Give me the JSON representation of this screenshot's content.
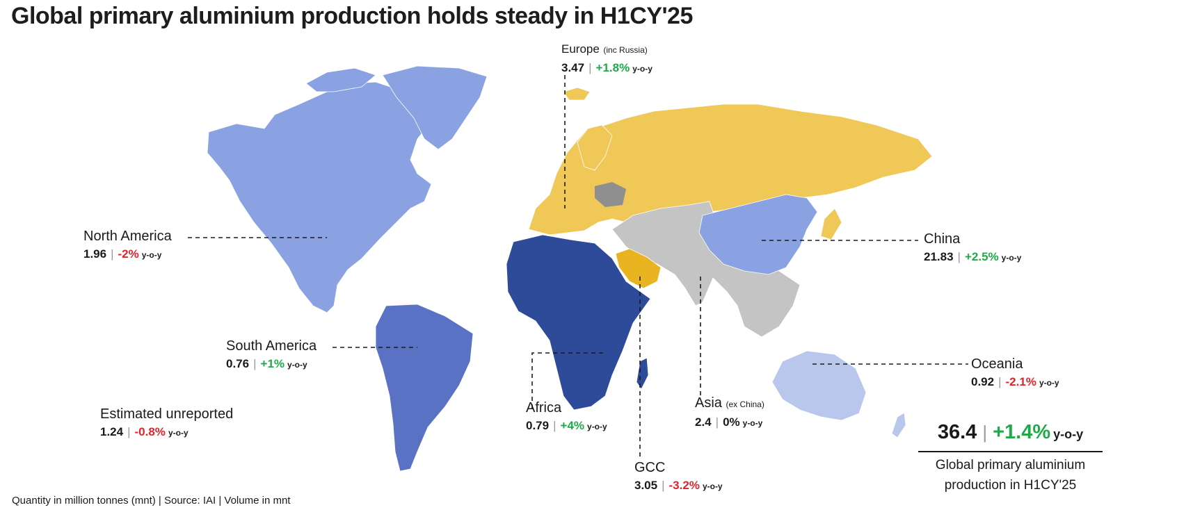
{
  "title": "Global primary aluminium production holds steady in H1CY'25",
  "colors": {
    "north_america": "#8aa2e2",
    "south_america": "#5a72c4",
    "africa": "#2e4b9a",
    "europe": "#f0c858",
    "gcc": "#e8b420",
    "asia_ex_china": "#c4c4c4",
    "china": "#8aa2e2",
    "oceania": "#b9c7ec",
    "positive": "#1faa48",
    "negative": "#e0242c"
  },
  "regions": {
    "europe": {
      "name": "Europe",
      "sub": "(inc Russia)",
      "value": "3.47",
      "change": "+1.8%",
      "yoy": "y-o-y"
    },
    "north_america": {
      "name": "North America",
      "value": "1.96",
      "change": "-2%",
      "yoy": "y-o-y"
    },
    "china": {
      "name": "China",
      "value": "21.83",
      "change": "+2.5%",
      "yoy": "y-o-y"
    },
    "south_america": {
      "name": "South America",
      "value": "0.76",
      "change": "+1%",
      "yoy": "y-o-y"
    },
    "oceania": {
      "name": "Oceania",
      "value": "0.92",
      "change": "-2.1%",
      "yoy": "y-o-y"
    },
    "estimated_unreported": {
      "name": "Estimated unreported",
      "value": "1.24",
      "change": "-0.8%",
      "yoy": "y-o-y"
    },
    "africa": {
      "name": "Africa",
      "value": "0.79",
      "change": "+4%",
      "yoy": "y-o-y"
    },
    "asia": {
      "name": "Asia",
      "sub": "(ex China)",
      "value": "2.4",
      "change": "0%",
      "yoy": "y-o-y"
    },
    "gcc": {
      "name": "GCC",
      "value": "3.05",
      "change": "-3.2%",
      "yoy": "y-o-y"
    }
  },
  "total": {
    "value": "36.4",
    "change": "+1.4%",
    "yoy": "y-o-y",
    "label_line1": "Global primary aluminium",
    "label_line2": "production in H1CY'25"
  },
  "footer": "Quantity in million tonnes (mnt)  |  Source: IAI  |  Volume in mnt"
}
